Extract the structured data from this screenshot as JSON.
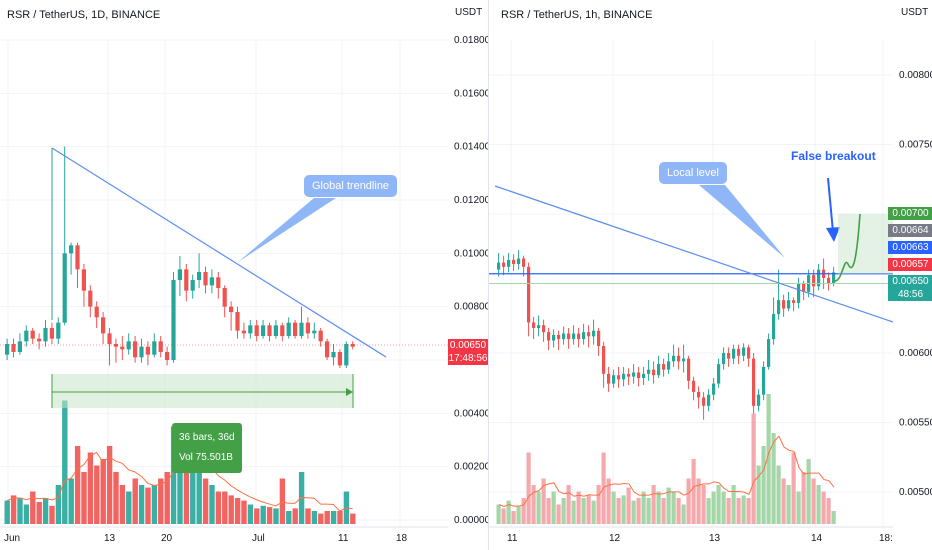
{
  "left_chart": {
    "title": "RSR / TetherUS, 1D, BINANCE",
    "unit": "USDT",
    "yticks": [
      "0.01800",
      "0.01600",
      "0.01400",
      "0.01200",
      "0.01000",
      "0.00800",
      "0.00600",
      "0.00400",
      "0.00200",
      "0.00000"
    ],
    "xticks": [
      "Jun",
      "13",
      "20",
      "Jul",
      "11",
      "18"
    ],
    "trendline_label": "Global trendline",
    "measure_bars": "36 bars, 36d",
    "measure_vol": "Vol 75.501B",
    "price_value": "0.00650",
    "price_countdown": "17:48:56"
  },
  "right_chart": {
    "title": "RSR / TetherUS, 1h, BINANCE",
    "unit": "USDT",
    "yticks": [
      "0.00800",
      "0.00750",
      "0.00700",
      "0.00650",
      "0.00600",
      "0.00550",
      "0.00500"
    ],
    "xticks": [
      "11",
      "12",
      "13",
      "14",
      "18:"
    ],
    "local_level_label": "Local level",
    "false_breakout_label": "False breakout",
    "price_tags": [
      {
        "value": "0.00700",
        "color": "#43a047"
      },
      {
        "value": "0.00664",
        "color": "#787b86"
      },
      {
        "value": "0.00663",
        "color": "#2962ff"
      },
      {
        "value": "0.00657",
        "color": "#f23645"
      },
      {
        "value": "0.00650",
        "color": "#26a69a"
      },
      {
        "value": "48:56",
        "color": "#26a69a"
      }
    ]
  },
  "colors": {
    "up": "#26a69a",
    "down": "#ef5350",
    "trendline": "#5b8def",
    "projection": "#43a047"
  },
  "chart_data": [
    {
      "type": "candlestick",
      "title": "RSR / TetherUS, 1D, BINANCE",
      "ylim": [
        0,
        0.019
      ],
      "yscale_label": "USDT",
      "candles": [
        [
          0.0062,
          0.0066,
          0.006,
          0.0068
        ],
        [
          0.0066,
          0.0063,
          0.0061,
          0.0068
        ],
        [
          0.0063,
          0.0067,
          0.0062,
          0.007
        ],
        [
          0.0067,
          0.0071,
          0.0065,
          0.0073
        ],
        [
          0.0071,
          0.0068,
          0.0066,
          0.0072
        ],
        [
          0.0068,
          0.0067,
          0.0064,
          0.007
        ],
        [
          0.0067,
          0.0072,
          0.0065,
          0.0075
        ],
        [
          0.0072,
          0.0068,
          0.0066,
          0.0074
        ],
        [
          0.0068,
          0.0074,
          0.0066,
          0.0076
        ],
        [
          0.0074,
          0.01,
          0.0073,
          0.014
        ],
        [
          0.01,
          0.0103,
          0.0092,
          0.0104
        ],
        [
          0.0103,
          0.0094,
          0.0087,
          0.0104
        ],
        [
          0.0094,
          0.0086,
          0.008,
          0.0096
        ],
        [
          0.0086,
          0.008,
          0.0076,
          0.0088
        ],
        [
          0.008,
          0.0076,
          0.0072,
          0.0082
        ],
        [
          0.0076,
          0.007,
          0.0066,
          0.0078
        ],
        [
          0.007,
          0.0066,
          0.0058,
          0.0072
        ],
        [
          0.0066,
          0.0065,
          0.0059,
          0.0068
        ],
        [
          0.0065,
          0.0064,
          0.006,
          0.0069
        ],
        [
          0.0064,
          0.0067,
          0.0062,
          0.007
        ],
        [
          0.0067,
          0.0061,
          0.0059,
          0.0069
        ],
        [
          0.0061,
          0.0065,
          0.0059,
          0.0068
        ],
        [
          0.0065,
          0.0062,
          0.0058,
          0.0067
        ],
        [
          0.0062,
          0.0067,
          0.0061,
          0.007
        ],
        [
          0.0067,
          0.0063,
          0.0061,
          0.0069
        ],
        [
          0.0063,
          0.006,
          0.0058,
          0.0065
        ],
        [
          0.006,
          0.009,
          0.0059,
          0.0093
        ],
        [
          0.009,
          0.0094,
          0.0084,
          0.0099
        ],
        [
          0.0094,
          0.0086,
          0.0082,
          0.0096
        ],
        [
          0.0086,
          0.009,
          0.0083,
          0.0092
        ],
        [
          0.009,
          0.0093,
          0.0087,
          0.01
        ],
        [
          0.0093,
          0.0088,
          0.0085,
          0.0095
        ],
        [
          0.0088,
          0.0091,
          0.0085,
          0.0094
        ],
        [
          0.0091,
          0.0087,
          0.0083,
          0.0093
        ],
        [
          0.0087,
          0.008,
          0.0076,
          0.0088
        ],
        [
          0.008,
          0.0078,
          0.0071,
          0.0082
        ],
        [
          0.0078,
          0.0071,
          0.0068,
          0.008
        ],
        [
          0.0071,
          0.007,
          0.0068,
          0.0074
        ],
        [
          0.007,
          0.0073,
          0.0068,
          0.0075
        ],
        [
          0.0073,
          0.0069,
          0.0067,
          0.0075
        ],
        [
          0.0069,
          0.0073,
          0.0068,
          0.0075
        ],
        [
          0.0073,
          0.0069,
          0.0067,
          0.0074
        ],
        [
          0.0069,
          0.0073,
          0.0068,
          0.0075
        ],
        [
          0.0073,
          0.0069,
          0.0067,
          0.0074
        ],
        [
          0.0069,
          0.0074,
          0.0068,
          0.0076
        ],
        [
          0.0074,
          0.0069,
          0.0068,
          0.0075
        ],
        [
          0.0069,
          0.0074,
          0.0068,
          0.008
        ],
        [
          0.0074,
          0.007,
          0.0068,
          0.0076
        ],
        [
          0.007,
          0.0071,
          0.0068,
          0.0074
        ],
        [
          0.0071,
          0.0067,
          0.0065,
          0.0072
        ],
        [
          0.0067,
          0.0061,
          0.006,
          0.0068
        ],
        [
          0.0061,
          0.0063,
          0.0058,
          0.0066
        ],
        [
          0.0063,
          0.0058,
          0.0057,
          0.0064
        ],
        [
          0.0058,
          0.0066,
          0.0057,
          0.0067
        ],
        [
          0.0066,
          0.0065,
          0.0064,
          0.0067
        ]
      ],
      "volume_relative": [
        0.18,
        0.22,
        0.2,
        0.15,
        0.25,
        0.17,
        0.2,
        0.14,
        0.3,
        0.95,
        0.35,
        0.6,
        0.4,
        0.55,
        0.45,
        0.5,
        0.6,
        0.4,
        0.3,
        0.25,
        0.35,
        0.3,
        0.28,
        0.3,
        0.35,
        0.4,
        0.75,
        0.6,
        0.45,
        0.48,
        0.4,
        0.35,
        0.3,
        0.25,
        0.25,
        0.22,
        0.2,
        0.18,
        0.15,
        0.12,
        0.14,
        0.13,
        0.12,
        0.35,
        0.1,
        0.12,
        0.4,
        0.12,
        0.1,
        0.08,
        0.1,
        0.1,
        0.1,
        0.25,
        0.08
      ]
    },
    {
      "type": "candlestick",
      "title": "RSR / TetherUS, 1h, BINANCE",
      "ylim": [
        0.0047,
        0.0083
      ],
      "yscale_label": "USDT",
      "candles": [
        [
          0.0066,
          0.00665,
          0.00655,
          0.00672
        ],
        [
          0.00665,
          0.00662,
          0.00656,
          0.0067
        ],
        [
          0.00662,
          0.00667,
          0.00658,
          0.00672
        ],
        [
          0.00667,
          0.00664,
          0.00659,
          0.00671
        ],
        [
          0.00664,
          0.00668,
          0.0066,
          0.00674
        ],
        [
          0.00668,
          0.00662,
          0.00655,
          0.0067
        ],
        [
          0.00662,
          0.00622,
          0.00612,
          0.00665
        ],
        [
          0.00622,
          0.00618,
          0.0061,
          0.00626
        ],
        [
          0.00618,
          0.0062,
          0.00612,
          0.00627
        ],
        [
          0.0062,
          0.00615,
          0.00608,
          0.00624
        ],
        [
          0.00615,
          0.00609,
          0.00602,
          0.00618
        ],
        [
          0.00609,
          0.00613,
          0.00604,
          0.00617
        ],
        [
          0.00613,
          0.0061,
          0.00602,
          0.00616
        ],
        [
          0.0061,
          0.00614,
          0.00606,
          0.00619
        ],
        [
          0.00614,
          0.0061,
          0.00603,
          0.00618
        ],
        [
          0.0061,
          0.00614,
          0.00606,
          0.0062
        ],
        [
          0.00614,
          0.0061,
          0.00604,
          0.00618
        ],
        [
          0.0061,
          0.00615,
          0.00606,
          0.00621
        ],
        [
          0.00615,
          0.00612,
          0.00604,
          0.0062
        ],
        [
          0.00612,
          0.00616,
          0.00606,
          0.00624
        ],
        [
          0.00616,
          0.00605,
          0.00598,
          0.00618
        ],
        [
          0.00605,
          0.00585,
          0.00575,
          0.00608
        ],
        [
          0.00585,
          0.00578,
          0.00572,
          0.0059
        ],
        [
          0.00578,
          0.00584,
          0.00575,
          0.00588
        ],
        [
          0.00584,
          0.00581,
          0.00575,
          0.0059
        ],
        [
          0.00581,
          0.00585,
          0.00576,
          0.0059
        ],
        [
          0.00585,
          0.00583,
          0.00577,
          0.00589
        ],
        [
          0.00583,
          0.00586,
          0.00578,
          0.00592
        ],
        [
          0.00586,
          0.00582,
          0.00576,
          0.0059
        ],
        [
          0.00582,
          0.00585,
          0.00577,
          0.0059
        ],
        [
          0.00585,
          0.00588,
          0.0058,
          0.00595
        ],
        [
          0.00588,
          0.00584,
          0.00578,
          0.00594
        ],
        [
          0.00584,
          0.00592,
          0.00582,
          0.00598
        ],
        [
          0.00592,
          0.00588,
          0.00583,
          0.00596
        ],
        [
          0.00588,
          0.00594,
          0.00585,
          0.006
        ],
        [
          0.00594,
          0.00598,
          0.0059,
          0.00606
        ],
        [
          0.00598,
          0.00594,
          0.00588,
          0.00604
        ],
        [
          0.00594,
          0.00596,
          0.00586,
          0.00606
        ],
        [
          0.00596,
          0.0058,
          0.00574,
          0.00598
        ],
        [
          0.0058,
          0.00572,
          0.00566,
          0.00583
        ],
        [
          0.00572,
          0.00568,
          0.0056,
          0.00576
        ],
        [
          0.00568,
          0.00562,
          0.00552,
          0.00572
        ],
        [
          0.00562,
          0.0057,
          0.00558,
          0.00574
        ],
        [
          0.0057,
          0.00578,
          0.00566,
          0.00582
        ],
        [
          0.00578,
          0.00592,
          0.00575,
          0.00596
        ],
        [
          0.00592,
          0.006,
          0.00588,
          0.00604
        ],
        [
          0.006,
          0.00596,
          0.0059,
          0.00604
        ],
        [
          0.00596,
          0.00603,
          0.00592,
          0.00606
        ],
        [
          0.00603,
          0.00598,
          0.00592,
          0.00606
        ],
        [
          0.00598,
          0.00604,
          0.00594,
          0.00607
        ],
        [
          0.00604,
          0.00596,
          0.0059,
          0.00606
        ],
        [
          0.00596,
          0.00562,
          0.00555,
          0.006
        ],
        [
          0.00562,
          0.0057,
          0.00558,
          0.00574
        ],
        [
          0.0057,
          0.0059,
          0.00566,
          0.00594
        ],
        [
          0.0059,
          0.0061,
          0.00588,
          0.00614
        ],
        [
          0.0061,
          0.00628,
          0.00606,
          0.0064
        ],
        [
          0.00628,
          0.00638,
          0.00624,
          0.0066
        ],
        [
          0.00638,
          0.00632,
          0.00626,
          0.00642
        ],
        [
          0.00632,
          0.00638,
          0.0063,
          0.00644
        ],
        [
          0.00638,
          0.00636,
          0.0063,
          0.0064
        ],
        [
          0.00636,
          0.0065,
          0.00632,
          0.00654
        ],
        [
          0.0065,
          0.00644,
          0.00638,
          0.00652
        ],
        [
          0.00644,
          0.00656,
          0.0064,
          0.0066
        ],
        [
          0.00656,
          0.00648,
          0.0064,
          0.0066
        ],
        [
          0.00648,
          0.0066,
          0.00645,
          0.00664
        ],
        [
          0.0066,
          0.00654,
          0.00646,
          0.00668
        ],
        [
          0.00654,
          0.0065,
          0.00645,
          0.00658
        ],
        [
          0.0065,
          0.00658,
          0.00648,
          0.00662
        ]
      ],
      "volume_relative": [
        0.15,
        0.12,
        0.18,
        0.1,
        0.14,
        0.2,
        0.55,
        0.3,
        0.25,
        0.35,
        0.2,
        0.25,
        0.15,
        0.2,
        0.3,
        0.18,
        0.25,
        0.2,
        0.22,
        0.18,
        0.3,
        0.55,
        0.35,
        0.25,
        0.2,
        0.22,
        0.28,
        0.18,
        0.2,
        0.25,
        0.2,
        0.3,
        0.25,
        0.2,
        0.28,
        0.25,
        0.2,
        0.15,
        0.35,
        0.5,
        0.35,
        0.3,
        0.2,
        0.25,
        0.3,
        0.25,
        0.2,
        0.3,
        0.2,
        0.22,
        0.2,
        0.85,
        0.45,
        0.6,
        1.0,
        0.7,
        0.45,
        0.35,
        0.3,
        0.55,
        0.25,
        0.4,
        0.5,
        0.35,
        0.3,
        0.25,
        0.2,
        0.1
      ],
      "levels": {
        "local_level": 0.00657,
        "support": 0.0065
      },
      "projection_target": 0.007
    }
  ]
}
